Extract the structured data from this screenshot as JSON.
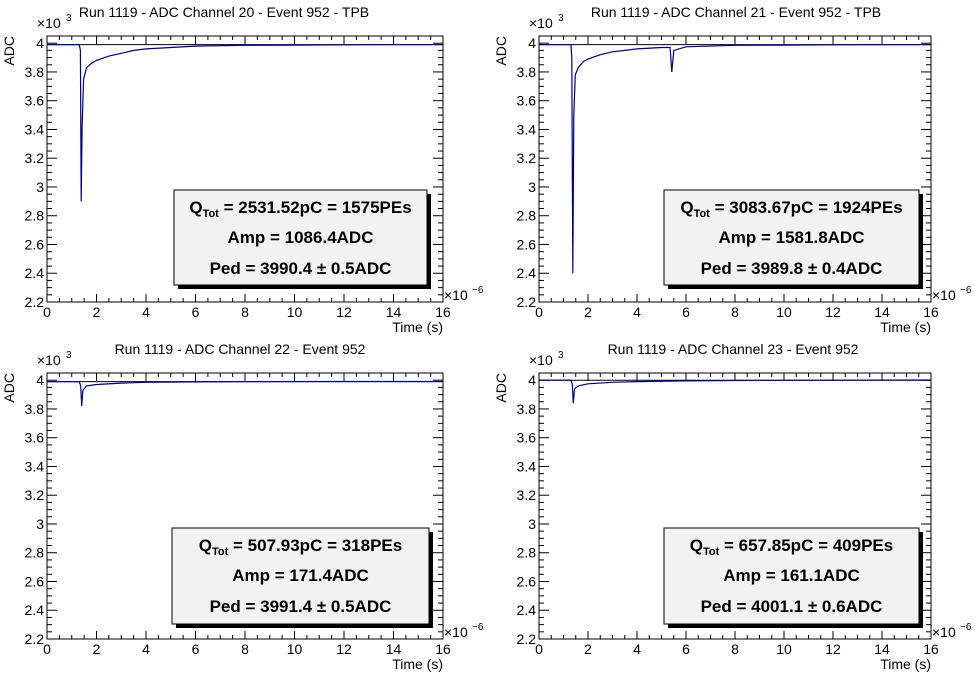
{
  "chart_data": [
    {
      "type": "line",
      "title": "Run 1119 - ADC Channel 20 - Event 952 - TPB",
      "xlabel": "Time (s)",
      "ylabel": "ADC",
      "x_multiplier": "×10",
      "x_multiplier_exp": "−6",
      "y_multiplier": "×10",
      "y_multiplier_exp": "3",
      "xlim": [
        0,
        16
      ],
      "ylim": [
        2.2,
        4.05
      ],
      "x_ticks": [
        0,
        2,
        4,
        6,
        8,
        10,
        12,
        14,
        16
      ],
      "x_tick_labels": [
        "0",
        "2",
        "4",
        "6",
        "8",
        "10",
        "12",
        "14",
        "16"
      ],
      "y_ticks": [
        2.2,
        2.4,
        2.6,
        2.8,
        3.0,
        3.2,
        3.4,
        3.6,
        3.8,
        4.0
      ],
      "y_tick_labels": [
        "2.2",
        "2.4",
        "2.6",
        "2.8",
        "3",
        "3.2",
        "3.4",
        "3.6",
        "3.8",
        "4"
      ],
      "color": "#000080",
      "pedestal": 3.99,
      "waveform": [
        [
          0,
          3.99
        ],
        [
          1.3,
          3.99
        ],
        [
          1.35,
          3.95
        ],
        [
          1.38,
          2.9
        ],
        [
          1.42,
          3.42
        ],
        [
          1.48,
          3.75
        ],
        [
          1.6,
          3.83
        ],
        [
          1.8,
          3.86
        ],
        [
          2.0,
          3.88
        ],
        [
          2.5,
          3.91
        ],
        [
          3.0,
          3.93
        ],
        [
          3.5,
          3.95
        ],
        [
          4.0,
          3.96
        ],
        [
          5.0,
          3.97
        ],
        [
          6.0,
          3.98
        ],
        [
          8.0,
          3.985
        ],
        [
          10.0,
          3.987
        ],
        [
          12.0,
          3.989
        ],
        [
          14.0,
          3.99
        ],
        [
          16.0,
          3.99
        ]
      ],
      "stats": {
        "qtot_prefix": "Q",
        "qtot_sub": "Tot",
        "qtot_value": " = 2531.52pC = 1575PEs",
        "amp": "Amp = 1086.4ADC",
        "ped": "Ped = 3990.4 ± 0.5ADC"
      }
    },
    {
      "type": "line",
      "title": "Run 1119 - ADC Channel 21 - Event 952 - TPB",
      "xlabel": "Time (s)",
      "ylabel": "ADC",
      "x_multiplier": "×10",
      "x_multiplier_exp": "−6",
      "y_multiplier": "×10",
      "y_multiplier_exp": "3",
      "xlim": [
        0,
        16
      ],
      "ylim": [
        2.2,
        4.05
      ],
      "x_ticks": [
        0,
        2,
        4,
        6,
        8,
        10,
        12,
        14,
        16
      ],
      "x_tick_labels": [
        "0",
        "2",
        "4",
        "6",
        "8",
        "10",
        "12",
        "14",
        "16"
      ],
      "y_ticks": [
        2.2,
        2.4,
        2.6,
        2.8,
        3.0,
        3.2,
        3.4,
        3.6,
        3.8,
        4.0
      ],
      "y_tick_labels": [
        "2.2",
        "2.4",
        "2.6",
        "2.8",
        "3",
        "3.2",
        "3.4",
        "3.6",
        "3.8",
        "4"
      ],
      "color": "#000080",
      "pedestal": 3.99,
      "waveform": [
        [
          0,
          3.99
        ],
        [
          1.3,
          3.99
        ],
        [
          1.34,
          3.9
        ],
        [
          1.38,
          2.4
        ],
        [
          1.42,
          3.5
        ],
        [
          1.48,
          3.78
        ],
        [
          1.6,
          3.83
        ],
        [
          1.8,
          3.87
        ],
        [
          2.0,
          3.89
        ],
        [
          2.5,
          3.92
        ],
        [
          3.0,
          3.94
        ],
        [
          3.5,
          3.95
        ],
        [
          4.0,
          3.96
        ],
        [
          5.0,
          3.97
        ],
        [
          5.35,
          3.97
        ],
        [
          5.42,
          3.8
        ],
        [
          5.5,
          3.95
        ],
        [
          6.0,
          3.975
        ],
        [
          8.0,
          3.985
        ],
        [
          10.0,
          3.987
        ],
        [
          12.0,
          3.989
        ],
        [
          14.0,
          3.99
        ],
        [
          16.0,
          3.99
        ]
      ],
      "stats": {
        "qtot_prefix": "Q",
        "qtot_sub": "Tot",
        "qtot_value": " = 3083.67pC = 1924PEs",
        "amp": "Amp = 1581.8ADC",
        "ped": "Ped = 3989.8  ± 0.4ADC"
      }
    },
    {
      "type": "line",
      "title": "Run 1119 - ADC Channel 22 - Event 952",
      "xlabel": "Time (s)",
      "ylabel": "ADC",
      "x_multiplier": "×10",
      "x_multiplier_exp": "−6",
      "y_multiplier": "×10",
      "y_multiplier_exp": "3",
      "xlim": [
        0,
        16
      ],
      "ylim": [
        2.2,
        4.05
      ],
      "x_ticks": [
        0,
        2,
        4,
        6,
        8,
        10,
        12,
        14,
        16
      ],
      "x_tick_labels": [
        "0",
        "2",
        "4",
        "6",
        "8",
        "10",
        "12",
        "14",
        "16"
      ],
      "y_ticks": [
        2.2,
        2.4,
        2.6,
        2.8,
        3.0,
        3.2,
        3.4,
        3.6,
        3.8,
        4.0
      ],
      "y_tick_labels": [
        "2.2",
        "2.4",
        "2.6",
        "2.8",
        "3",
        "3.2",
        "3.4",
        "3.6",
        "3.8",
        "4"
      ],
      "color": "#000080",
      "pedestal": 3.99,
      "waveform": [
        [
          0,
          3.99
        ],
        [
          1.3,
          3.99
        ],
        [
          1.36,
          3.96
        ],
        [
          1.4,
          3.82
        ],
        [
          1.45,
          3.93
        ],
        [
          1.6,
          3.96
        ],
        [
          2.0,
          3.97
        ],
        [
          3.0,
          3.98
        ],
        [
          4.0,
          3.985
        ],
        [
          6.0,
          3.988
        ],
        [
          8.0,
          3.99
        ],
        [
          12.0,
          3.991
        ],
        [
          16.0,
          3.991
        ]
      ],
      "stats": {
        "qtot_prefix": "Q",
        "qtot_sub": "Tot",
        "qtot_value": " = 507.93pC = 318PEs",
        "amp": "Amp = 171.4ADC",
        "ped": "Ped = 3991.4 ± 0.5ADC"
      }
    },
    {
      "type": "line",
      "title": "Run 1119 - ADC Channel 23 - Event 952",
      "xlabel": "Time (s)",
      "ylabel": "ADC",
      "x_multiplier": "×10",
      "x_multiplier_exp": "−6",
      "y_multiplier": "×10",
      "y_multiplier_exp": "3",
      "xlim": [
        0,
        16
      ],
      "ylim": [
        2.2,
        4.05
      ],
      "x_ticks": [
        0,
        2,
        4,
        6,
        8,
        10,
        12,
        14,
        16
      ],
      "x_tick_labels": [
        "0",
        "2",
        "4",
        "6",
        "8",
        "10",
        "12",
        "14",
        "16"
      ],
      "y_ticks": [
        2.2,
        2.4,
        2.6,
        2.8,
        3.0,
        3.2,
        3.4,
        3.6,
        3.8,
        4.0
      ],
      "y_tick_labels": [
        "2.2",
        "2.4",
        "2.6",
        "2.8",
        "3",
        "3.2",
        "3.4",
        "3.6",
        "3.8",
        "4"
      ],
      "color": "#000080",
      "pedestal": 4.0,
      "waveform": [
        [
          0,
          4.0
        ],
        [
          1.3,
          4.0
        ],
        [
          1.36,
          3.97
        ],
        [
          1.4,
          3.84
        ],
        [
          1.45,
          3.94
        ],
        [
          1.6,
          3.96
        ],
        [
          2.0,
          3.975
        ],
        [
          3.0,
          3.985
        ],
        [
          4.0,
          3.99
        ],
        [
          6.0,
          3.995
        ],
        [
          8.0,
          3.998
        ],
        [
          12.0,
          4.0
        ],
        [
          16.0,
          4.001
        ]
      ],
      "stats": {
        "qtot_prefix": "Q",
        "qtot_sub": "Tot",
        "qtot_value": " = 657.85pC = 409PEs",
        "amp": "Amp = 161.1ADC",
        "ped": "Ped = 4001.1 ± 0.6ADC"
      }
    }
  ]
}
